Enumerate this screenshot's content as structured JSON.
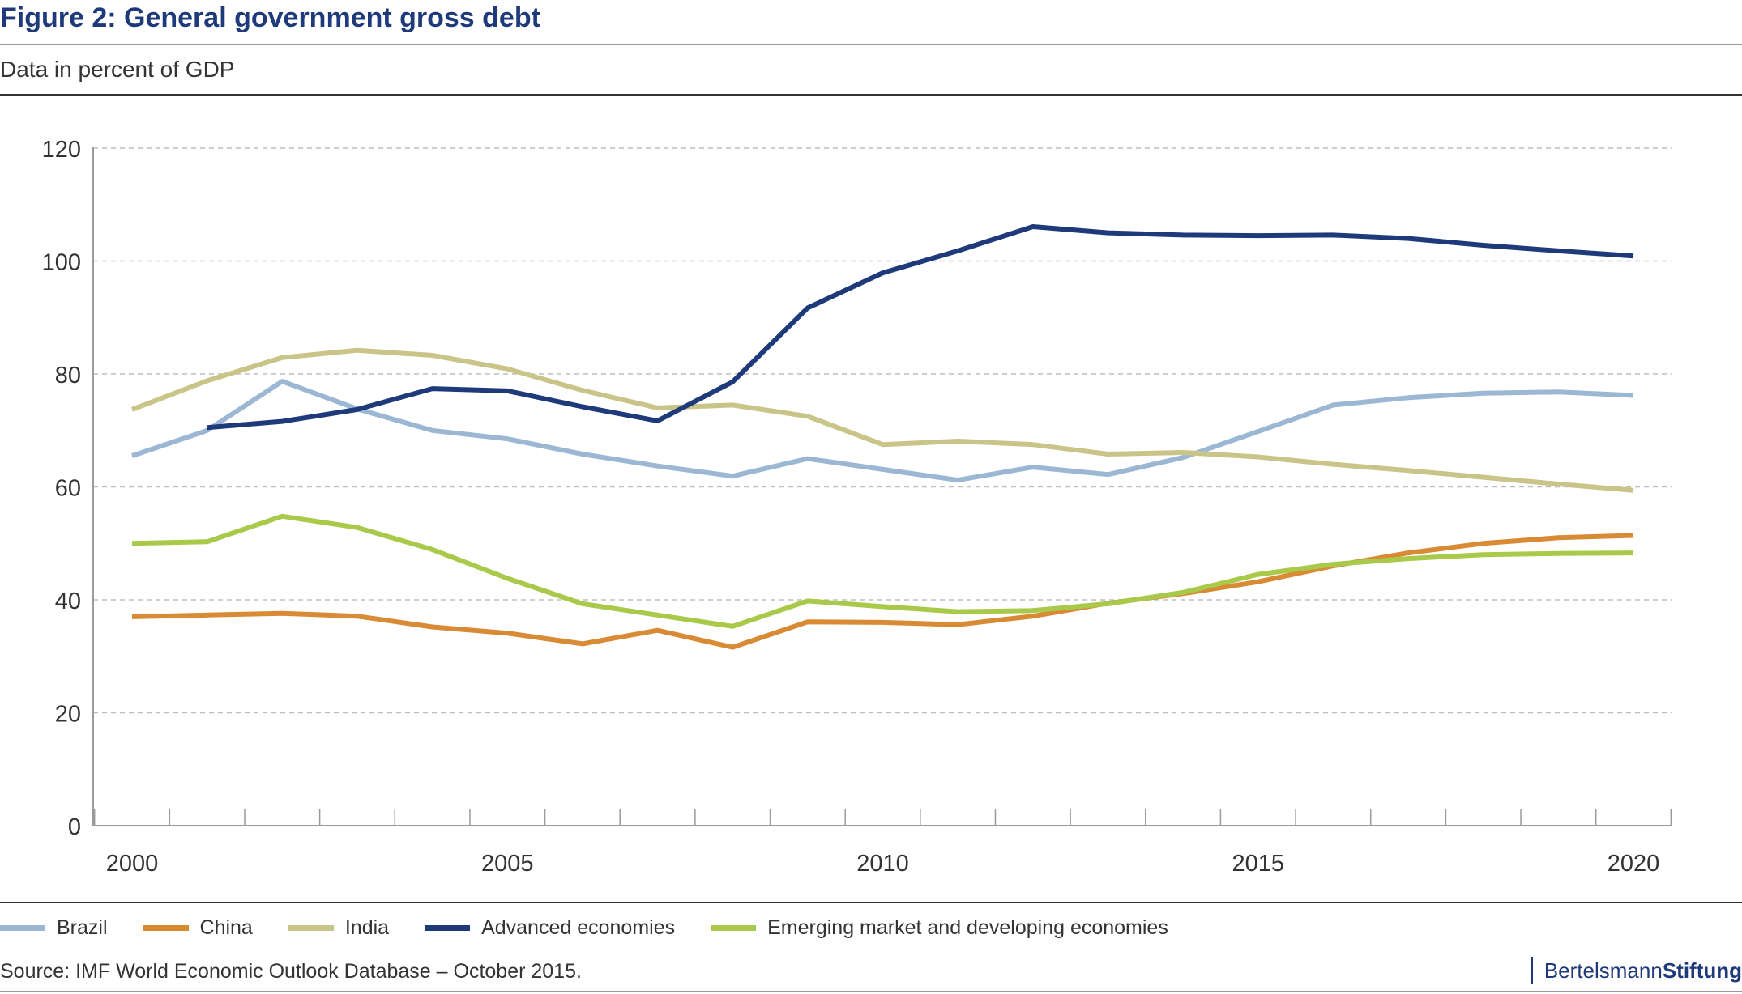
{
  "header": {
    "title": "Figure 2: General government gross debt",
    "subtitle": "Data in percent of GDP"
  },
  "footer": {
    "source": "Source: IMF World Economic Outlook Database – October 2015.",
    "brand_part1": "Bertelsmann",
    "brand_part2": "Stiftung"
  },
  "chart_data": {
    "type": "line",
    "title": "Figure 2: General government gross debt",
    "subtitle": "Data in percent of GDP",
    "xlabel": "",
    "ylabel": "",
    "xlim": [
      2000,
      2020
    ],
    "ylim": [
      0,
      120
    ],
    "yticks": [
      0,
      20,
      40,
      60,
      80,
      100,
      120
    ],
    "xticks": [
      2000,
      2005,
      2010,
      2015,
      2020
    ],
    "grid": "horizontal dashed",
    "legend_position": "bottom",
    "x": [
      2000,
      2001,
      2002,
      2003,
      2004,
      2005,
      2006,
      2007,
      2008,
      2009,
      2010,
      2011,
      2012,
      2013,
      2014,
      2015,
      2016,
      2017,
      2018,
      2019,
      2020
    ],
    "series": [
      {
        "name": "Brazil",
        "color": "#9bb7d4",
        "values": [
          65.5,
          70.0,
          78.7,
          73.8,
          70.0,
          68.5,
          65.8,
          63.7,
          61.9,
          65.0,
          63.1,
          61.2,
          63.5,
          62.2,
          65.2,
          69.8,
          74.5,
          75.8,
          76.6,
          76.8,
          76.2
        ]
      },
      {
        "name": "China",
        "color": "#d98a35",
        "values": [
          37.0,
          37.3,
          37.6,
          37.1,
          35.2,
          34.1,
          32.2,
          34.6,
          31.6,
          36.1,
          36.0,
          35.6,
          37.1,
          39.4,
          41.1,
          43.2,
          46.0,
          48.3,
          50.0,
          51.0,
          51.4
        ]
      },
      {
        "name": "India",
        "color": "#c9c488",
        "values": [
          73.7,
          78.8,
          82.9,
          84.2,
          83.3,
          80.9,
          77.1,
          74.0,
          74.5,
          72.5,
          67.5,
          68.1,
          67.5,
          65.8,
          66.1,
          65.3,
          64.0,
          62.9,
          61.7,
          60.5,
          59.4
        ]
      },
      {
        "name": "Advanced economies",
        "color": "#1f3a7a",
        "values": [
          null,
          70.5,
          71.6,
          73.7,
          77.4,
          77.0,
          74.2,
          71.7,
          78.6,
          91.7,
          97.9,
          101.8,
          106.1,
          105.0,
          104.6,
          104.5,
          104.6,
          104.0,
          102.8,
          101.8,
          100.9
        ]
      },
      {
        "name": "Emerging market and developing economies",
        "color": "#a8c94a",
        "values": [
          50.0,
          50.3,
          54.8,
          52.8,
          48.9,
          43.8,
          39.3,
          37.3,
          35.3,
          39.8,
          38.8,
          37.9,
          38.1,
          39.3,
          41.3,
          44.5,
          46.3,
          47.3,
          48.0,
          48.2,
          48.3
        ]
      }
    ]
  }
}
